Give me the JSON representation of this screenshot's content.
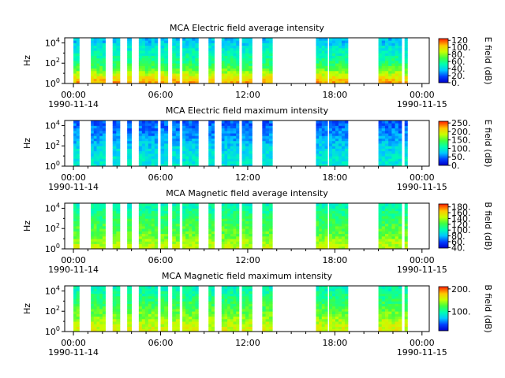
{
  "chart_data": [
    {
      "type": "heatmap",
      "title": "MCA  Electric field average intensity",
      "ylabel": "Hz",
      "colorbar_label": "E field (dB)",
      "colorbar_ticks": [
        "0.",
        "20.",
        "40.",
        "60.",
        "80.",
        "100.",
        "120"
      ],
      "colorbar_range": [
        0,
        125
      ],
      "y_ticks": [
        {
          "exp": 0,
          "value": 1
        },
        {
          "exp": 2,
          "value": 100
        },
        {
          "exp": 4,
          "value": 10000
        }
      ],
      "x_ticks": [
        {
          "hour": 0,
          "label": "00:00",
          "date": "1990-11-14"
        },
        {
          "hour": 6,
          "label": "06:00",
          "date": ""
        },
        {
          "hour": 12,
          "label": "12:00",
          "date": ""
        },
        {
          "hour": 18,
          "label": "18:00",
          "date": ""
        },
        {
          "hour": 24,
          "label": "00:00",
          "date": "1990-11-15"
        }
      ],
      "x_range_hours": [
        -0.6,
        24.5
      ],
      "data_intervals_hours": [
        [
          0.0,
          0.4
        ],
        [
          1.2,
          2.2
        ],
        [
          2.7,
          3.2
        ],
        [
          3.7,
          4.0
        ],
        [
          4.5,
          5.8
        ],
        [
          6.0,
          6.5
        ],
        [
          6.8,
          7.3
        ],
        [
          7.5,
          8.6
        ],
        [
          9.3,
          9.7
        ],
        [
          10.2,
          11.4
        ],
        [
          11.6,
          12.3
        ],
        [
          13.0,
          13.7
        ],
        [
          16.7,
          17.5
        ],
        [
          17.6,
          18.9
        ],
        [
          21.0,
          22.6
        ],
        [
          22.8,
          23.0
        ]
      ],
      "intensity_profile": [
        {
          "log_hz": 0.0,
          "level": 110
        },
        {
          "log_hz": 0.7,
          "level": 95
        },
        {
          "log_hz": 1.5,
          "level": 70
        },
        {
          "log_hz": 2.5,
          "level": 55
        },
        {
          "log_hz": 3.5,
          "level": 45
        },
        {
          "log_hz": 4.2,
          "level": 35
        }
      ]
    },
    {
      "type": "heatmap",
      "title": "MCA  Electric field maximum intensity",
      "ylabel": "Hz",
      "colorbar_label": "E field (dB)",
      "colorbar_ticks": [
        "0.",
        "50.",
        "100.",
        "150.",
        "200.",
        "250."
      ],
      "colorbar_range": [
        0,
        260
      ],
      "y_ticks": [
        {
          "exp": 0,
          "value": 1
        },
        {
          "exp": 2,
          "value": 100
        },
        {
          "exp": 4,
          "value": 10000
        }
      ],
      "x_ticks": [
        {
          "hour": 0,
          "label": "00:00",
          "date": "1990-11-14"
        },
        {
          "hour": 6,
          "label": "06:00",
          "date": ""
        },
        {
          "hour": 12,
          "label": "12:00",
          "date": ""
        },
        {
          "hour": 18,
          "label": "18:00",
          "date": ""
        },
        {
          "hour": 24,
          "label": "00:00",
          "date": "1990-11-15"
        }
      ],
      "x_range_hours": [
        -0.6,
        24.5
      ],
      "data_intervals_hours": [
        [
          0.0,
          0.4
        ],
        [
          1.2,
          2.2
        ],
        [
          2.7,
          3.2
        ],
        [
          3.7,
          4.0
        ],
        [
          4.5,
          5.8
        ],
        [
          6.0,
          6.5
        ],
        [
          6.8,
          7.3
        ],
        [
          7.5,
          8.6
        ],
        [
          9.3,
          9.7
        ],
        [
          10.2,
          11.4
        ],
        [
          11.6,
          12.3
        ],
        [
          13.0,
          13.7
        ],
        [
          16.7,
          17.5
        ],
        [
          17.6,
          18.9
        ],
        [
          21.0,
          22.6
        ],
        [
          22.8,
          23.0
        ]
      ],
      "intensity_profile": [
        {
          "log_hz": 0.0,
          "level": 95
        },
        {
          "log_hz": 1.0,
          "level": 90
        },
        {
          "log_hz": 2.0,
          "level": 80
        },
        {
          "log_hz": 3.0,
          "level": 60
        },
        {
          "log_hz": 4.2,
          "level": 45
        }
      ]
    },
    {
      "type": "heatmap",
      "title": "MCA  Magnetic field average intensity",
      "ylabel": "Hz",
      "colorbar_label": "B field (dB)",
      "colorbar_ticks": [
        "40.",
        "60.",
        "80.",
        "100.",
        "120.",
        "140.",
        "160.",
        "180."
      ],
      "colorbar_range": [
        38,
        190
      ],
      "y_ticks": [
        {
          "exp": 0,
          "value": 1
        },
        {
          "exp": 2,
          "value": 100
        },
        {
          "exp": 4,
          "value": 10000
        }
      ],
      "x_ticks": [
        {
          "hour": 0,
          "label": "00:00",
          "date": "1990-11-14"
        },
        {
          "hour": 6,
          "label": "06:00",
          "date": ""
        },
        {
          "hour": 12,
          "label": "12:00",
          "date": ""
        },
        {
          "hour": 18,
          "label": "18:00",
          "date": ""
        },
        {
          "hour": 24,
          "label": "00:00",
          "date": "1990-11-15"
        }
      ],
      "x_range_hours": [
        -0.6,
        24.5
      ],
      "data_intervals_hours": [
        [
          0.0,
          0.4
        ],
        [
          1.2,
          2.2
        ],
        [
          2.7,
          3.2
        ],
        [
          3.7,
          4.0
        ],
        [
          4.5,
          5.8
        ],
        [
          6.0,
          6.5
        ],
        [
          6.8,
          7.3
        ],
        [
          7.5,
          8.6
        ],
        [
          9.3,
          9.7
        ],
        [
          10.2,
          11.4
        ],
        [
          11.6,
          12.3
        ],
        [
          13.0,
          13.7
        ],
        [
          16.7,
          17.5
        ],
        [
          17.6,
          18.9
        ],
        [
          21.0,
          22.6
        ],
        [
          22.8,
          23.0
        ]
      ],
      "intensity_profile": [
        {
          "log_hz": 0.0,
          "level": 145
        },
        {
          "log_hz": 0.6,
          "level": 140
        },
        {
          "log_hz": 1.2,
          "level": 130
        },
        {
          "log_hz": 2.2,
          "level": 122
        },
        {
          "log_hz": 3.3,
          "level": 112
        },
        {
          "log_hz": 4.2,
          "level": 100
        }
      ]
    },
    {
      "type": "heatmap",
      "title": "MCA  Magnetic field maximum intensity",
      "ylabel": "Hz",
      "colorbar_label": "B field (dB)",
      "colorbar_ticks": [
        "100.",
        "200."
      ],
      "colorbar_range": [
        15,
        210
      ],
      "y_ticks": [
        {
          "exp": 0,
          "value": 1
        },
        {
          "exp": 2,
          "value": 100
        },
        {
          "exp": 4,
          "value": 10000
        }
      ],
      "x_ticks": [
        {
          "hour": 0,
          "label": "00:00",
          "date": "1990-11-14"
        },
        {
          "hour": 6,
          "label": "06:00",
          "date": ""
        },
        {
          "hour": 12,
          "label": "12:00",
          "date": ""
        },
        {
          "hour": 18,
          "label": "18:00",
          "date": ""
        },
        {
          "hour": 24,
          "label": "00:00",
          "date": "1990-11-15"
        }
      ],
      "x_range_hours": [
        -0.6,
        24.5
      ],
      "data_intervals_hours": [
        [
          0.0,
          0.4
        ],
        [
          1.2,
          2.2
        ],
        [
          2.7,
          3.2
        ],
        [
          3.7,
          4.0
        ],
        [
          4.5,
          5.8
        ],
        [
          6.0,
          6.5
        ],
        [
          6.8,
          7.3
        ],
        [
          7.5,
          8.6
        ],
        [
          9.3,
          9.7
        ],
        [
          10.2,
          11.4
        ],
        [
          11.6,
          12.3
        ],
        [
          13.0,
          13.7
        ],
        [
          16.7,
          17.5
        ],
        [
          17.6,
          18.9
        ],
        [
          21.0,
          22.6
        ],
        [
          22.8,
          23.0
        ]
      ],
      "intensity_profile": [
        {
          "log_hz": 0.0,
          "level": 160
        },
        {
          "log_hz": 0.8,
          "level": 150
        },
        {
          "log_hz": 1.6,
          "level": 135
        },
        {
          "log_hz": 2.6,
          "level": 120
        },
        {
          "log_hz": 3.6,
          "level": 105
        },
        {
          "log_hz": 4.2,
          "level": 95
        }
      ]
    }
  ]
}
